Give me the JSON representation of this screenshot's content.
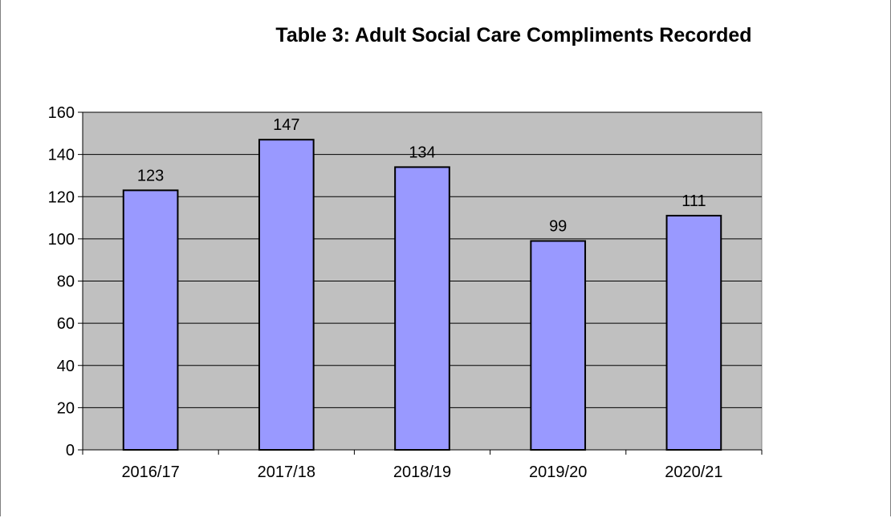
{
  "chart_data": {
    "type": "bar",
    "title": "Table 3: Adult Social Care Compliments Recorded",
    "categories": [
      "2016/17",
      "2017/18",
      "2018/19",
      "2019/20",
      "2020/21"
    ],
    "values": [
      123,
      147,
      134,
      99,
      111
    ],
    "data_labels": [
      "123",
      "147",
      "134",
      "99",
      "111"
    ],
    "ylim": [
      0,
      160
    ],
    "yticks": [
      0,
      20,
      40,
      60,
      80,
      100,
      120,
      140,
      160
    ],
    "xlabel": "",
    "ylabel": "",
    "grid": true,
    "legend": "none",
    "colors": {
      "bar_fill": "#9999ff",
      "bar_stroke": "#000000",
      "plot_background": "#c0c0c0",
      "gridline": "#000000"
    }
  }
}
